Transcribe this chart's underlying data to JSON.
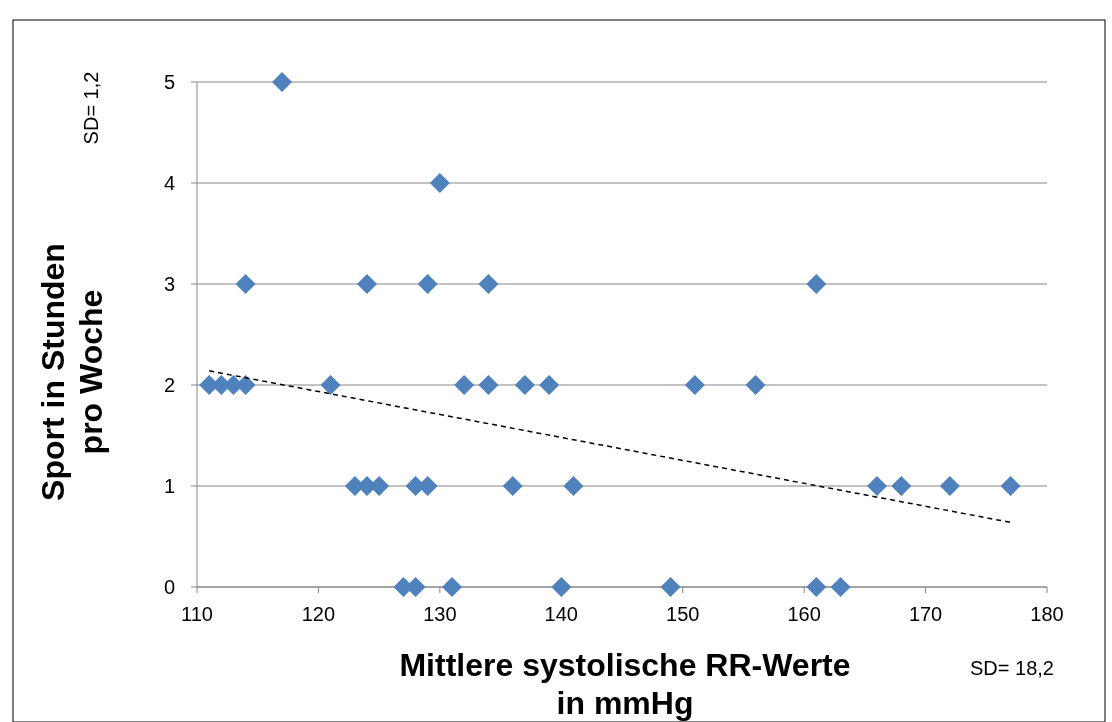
{
  "chart_data": {
    "type": "scatter",
    "xlabel": "Mittlere systolische RR-Werte\nin mmHg",
    "ylabel": "Sport in Stunden\npro Woche",
    "xlim": [
      110,
      180
    ],
    "xticks": [
      110,
      120,
      130,
      140,
      150,
      160,
      170,
      180
    ],
    "ylim": [
      0,
      5
    ],
    "yticks": [
      0,
      1,
      2,
      3,
      4,
      5
    ],
    "grid": "y",
    "marker": "diamond",
    "annotations": [
      "SD= 1,2",
      "SD= 18,2"
    ],
    "series": [
      {
        "color": "#4f81bd",
        "x": [
          117,
          130,
          114,
          124,
          129,
          134,
          161,
          111,
          112,
          113,
          114,
          121,
          132,
          134,
          137,
          139,
          151,
          156,
          123,
          124,
          125,
          128,
          129,
          136,
          141,
          166,
          168,
          172,
          177,
          127,
          128,
          131,
          140,
          149,
          161,
          163
        ],
        "values": [
          5,
          4,
          3,
          3,
          3,
          3,
          3,
          2,
          2,
          2,
          2,
          2,
          2,
          2,
          2,
          2,
          2,
          2,
          1,
          1,
          1,
          1,
          1,
          1,
          1,
          1,
          1,
          1,
          1,
          0,
          0,
          0,
          0,
          0,
          0,
          0
        ]
      },
      {
        "type": "line",
        "color": "#000000",
        "line_style": "dashed",
        "marker": "none",
        "x": [
          111,
          177
        ],
        "values": [
          2.14,
          0.64
        ]
      }
    ]
  }
}
